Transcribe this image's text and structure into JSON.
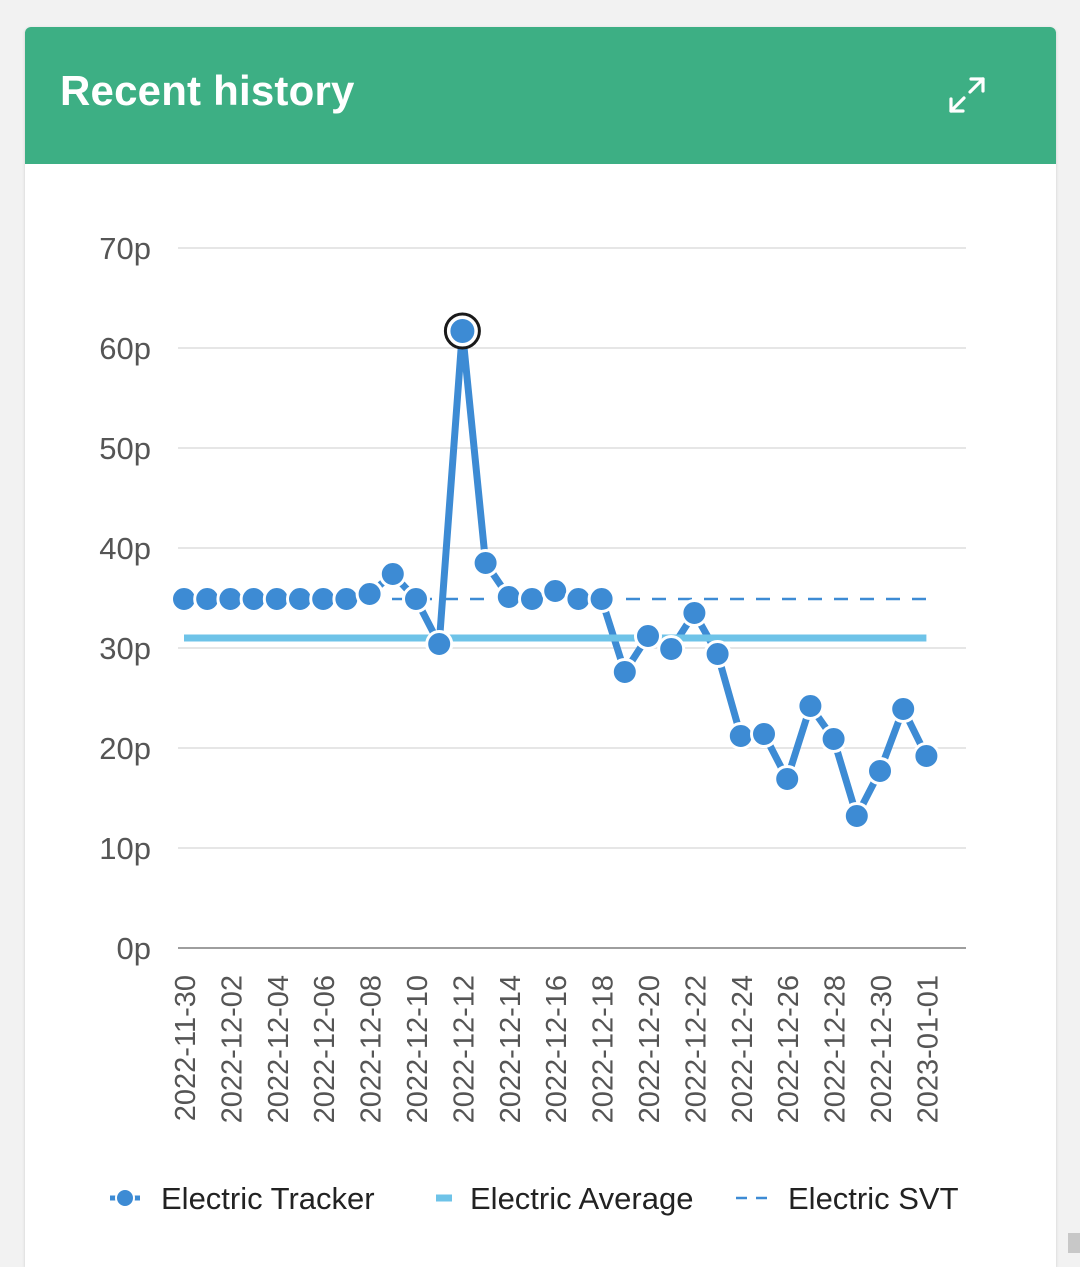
{
  "header": {
    "title": "Recent history",
    "expand_icon": "expand-icon",
    "background_color": "#3daf84"
  },
  "chart_data": {
    "type": "line",
    "title": "Recent history",
    "xlabel": "",
    "ylabel": "",
    "ylim": [
      0,
      70
    ],
    "y_ticks": [
      "0p",
      "10p",
      "20p",
      "30p",
      "40p",
      "50p",
      "60p",
      "70p"
    ],
    "x": [
      "2022-11-30",
      "2022-12-01",
      "2022-12-02",
      "2022-12-03",
      "2022-12-04",
      "2022-12-05",
      "2022-12-06",
      "2022-12-07",
      "2022-12-08",
      "2022-12-09",
      "2022-12-10",
      "2022-12-11",
      "2022-12-12",
      "2022-12-13",
      "2022-12-14",
      "2022-12-15",
      "2022-12-16",
      "2022-12-17",
      "2022-12-18",
      "2022-12-19",
      "2022-12-20",
      "2022-12-21",
      "2022-12-22",
      "2022-12-23",
      "2022-12-24",
      "2022-12-25",
      "2022-12-26",
      "2022-12-27",
      "2022-12-28",
      "2022-12-29",
      "2022-12-30",
      "2022-12-31",
      "2023-01-01"
    ],
    "x_tick_labels": [
      "2022-11-30",
      "2022-12-02",
      "2022-12-04",
      "2022-12-06",
      "2022-12-08",
      "2022-12-10",
      "2022-12-12",
      "2022-12-14",
      "2022-12-16",
      "2022-12-18",
      "2022-12-20",
      "2022-12-22",
      "2022-12-24",
      "2022-12-26",
      "2022-12-28",
      "2022-12-30",
      "2023-01-01"
    ],
    "grid": true,
    "legend_position": "bottom",
    "series": [
      {
        "name": "Electric Tracker",
        "style": "line-markers",
        "color": "#3d8bd4",
        "values": [
          34.9,
          34.9,
          34.9,
          34.9,
          34.9,
          34.9,
          34.9,
          34.9,
          35.4,
          37.4,
          34.9,
          30.4,
          61.7,
          38.5,
          35.1,
          34.9,
          35.7,
          34.9,
          34.9,
          27.6,
          31.2,
          29.9,
          33.5,
          29.4,
          21.2,
          21.4,
          16.9,
          24.2,
          20.9,
          13.2,
          17.7,
          23.9,
          19.2
        ]
      },
      {
        "name": "Electric Average",
        "style": "solid",
        "color": "#6ec3e8",
        "values": [
          31,
          31,
          31,
          31,
          31,
          31,
          31,
          31,
          31,
          31,
          31,
          31,
          31,
          31,
          31,
          31,
          31,
          31,
          31,
          31,
          31,
          31,
          31,
          31,
          31,
          31,
          31,
          31,
          31,
          31,
          31,
          31,
          31
        ]
      },
      {
        "name": "Electric SVT",
        "style": "dashed",
        "color": "#3d8bd4",
        "values": [
          34.9,
          34.9,
          34.9,
          34.9,
          34.9,
          34.9,
          34.9,
          34.9,
          34.9,
          34.9,
          34.9,
          34.9,
          34.9,
          34.9,
          34.9,
          34.9,
          34.9,
          34.9,
          34.9,
          34.9,
          34.9,
          34.9,
          34.9,
          34.9,
          34.9,
          34.9,
          34.9,
          34.9,
          34.9,
          34.9,
          34.9,
          34.9,
          34.9
        ]
      }
    ],
    "highlighted_point": "2022-12-12"
  }
}
